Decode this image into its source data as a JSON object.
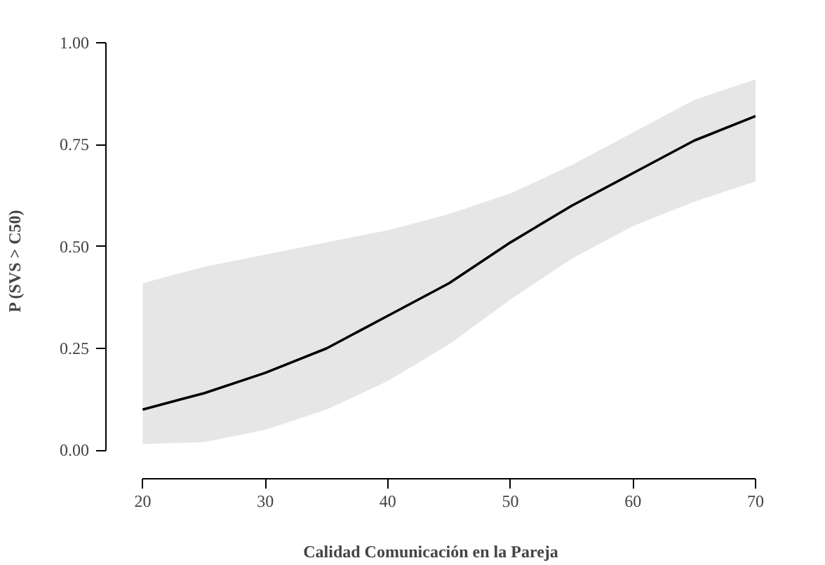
{
  "chart_data": {
    "type": "line",
    "xlabel": "Calidad Comunicación en la Pareja",
    "ylabel": "P (SVS > C50)",
    "x": [
      20,
      25,
      30,
      35,
      40,
      45,
      50,
      55,
      60,
      65,
      70
    ],
    "series": [
      {
        "color": "#000000",
        "values": [
          0.1,
          0.14,
          0.19,
          0.25,
          0.33,
          0.41,
          0.51,
          0.6,
          0.68,
          0.76,
          0.82
        ],
        "lower": [
          0.015,
          0.02,
          0.05,
          0.1,
          0.17,
          0.26,
          0.37,
          0.47,
          0.55,
          0.61,
          0.66
        ],
        "upper": [
          0.41,
          0.45,
          0.48,
          0.51,
          0.54,
          0.58,
          0.63,
          0.7,
          0.78,
          0.86,
          0.91
        ]
      }
    ],
    "xlim": [
      17,
      70
    ],
    "ylim": [
      -0.07,
      1
    ],
    "xticks": [
      20,
      30,
      40,
      50,
      60,
      70
    ],
    "yticks": [
      {
        "value": 0,
        "label": "0.00"
      },
      {
        "value": 0.25,
        "label": "0.25"
      },
      {
        "value": 0.5,
        "label": "0.50"
      },
      {
        "value": 0.75,
        "label": "0.75"
      },
      {
        "value": 1,
        "label": "1.00"
      }
    ],
    "grid": false,
    "line_style": "solid"
  }
}
